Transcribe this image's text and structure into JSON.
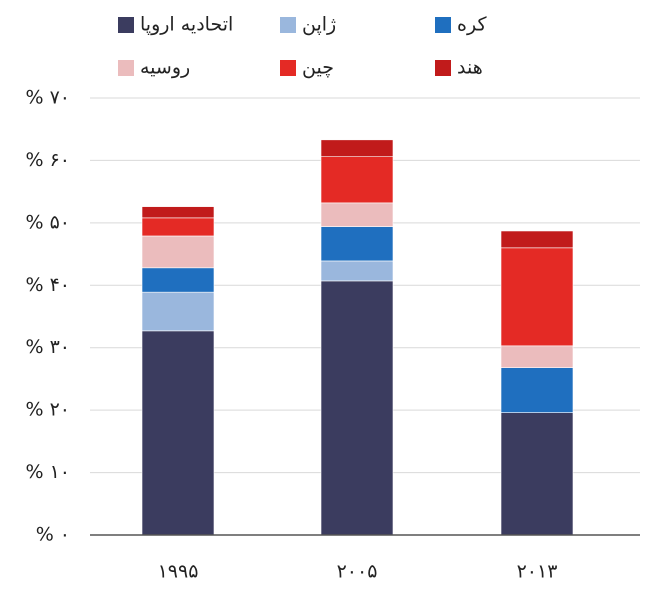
{
  "chart_data": {
    "type": "stacked_bar",
    "categories": [
      "۱۹۹۵",
      "۲۰۰۵",
      "۲۰۱۳"
    ],
    "series": [
      {
        "name": "اتحادیه اروپا",
        "color": "#3b3c5f",
        "values": [
          32.7,
          40.7,
          19.6
        ]
      },
      {
        "name": "ژاپن",
        "color": "#9ab7dd",
        "values": [
          6.2,
          3.2,
          0
        ]
      },
      {
        "name": "کره",
        "color": "#1f6fbf",
        "values": [
          3.9,
          5.5,
          7.2
        ]
      },
      {
        "name": "روسیه",
        "color": "#ebbcbd",
        "values": [
          5.1,
          3.8,
          3.5
        ]
      },
      {
        "name": "چین",
        "color": "#e42a25",
        "values": [
          2.9,
          7.4,
          15.7
        ]
      },
      {
        "name": "هند",
        "color": "#c11b1b",
        "values": [
          1.8,
          2.7,
          2.7
        ]
      }
    ],
    "ylim": [
      0,
      70
    ],
    "yticks": [
      {
        "value": 0,
        "label": "% ۰"
      },
      {
        "value": 10,
        "label": "% ۱۰"
      },
      {
        "value": 20,
        "label": "% ۲۰"
      },
      {
        "value": 30,
        "label": "% ۳۰"
      },
      {
        "value": 40,
        "label": "% ۴۰"
      },
      {
        "value": 50,
        "label": "% ۵۰"
      },
      {
        "value": 60,
        "label": "% ۶۰"
      },
      {
        "value": 70,
        "label": "% ۷۰"
      }
    ],
    "grid": true
  }
}
